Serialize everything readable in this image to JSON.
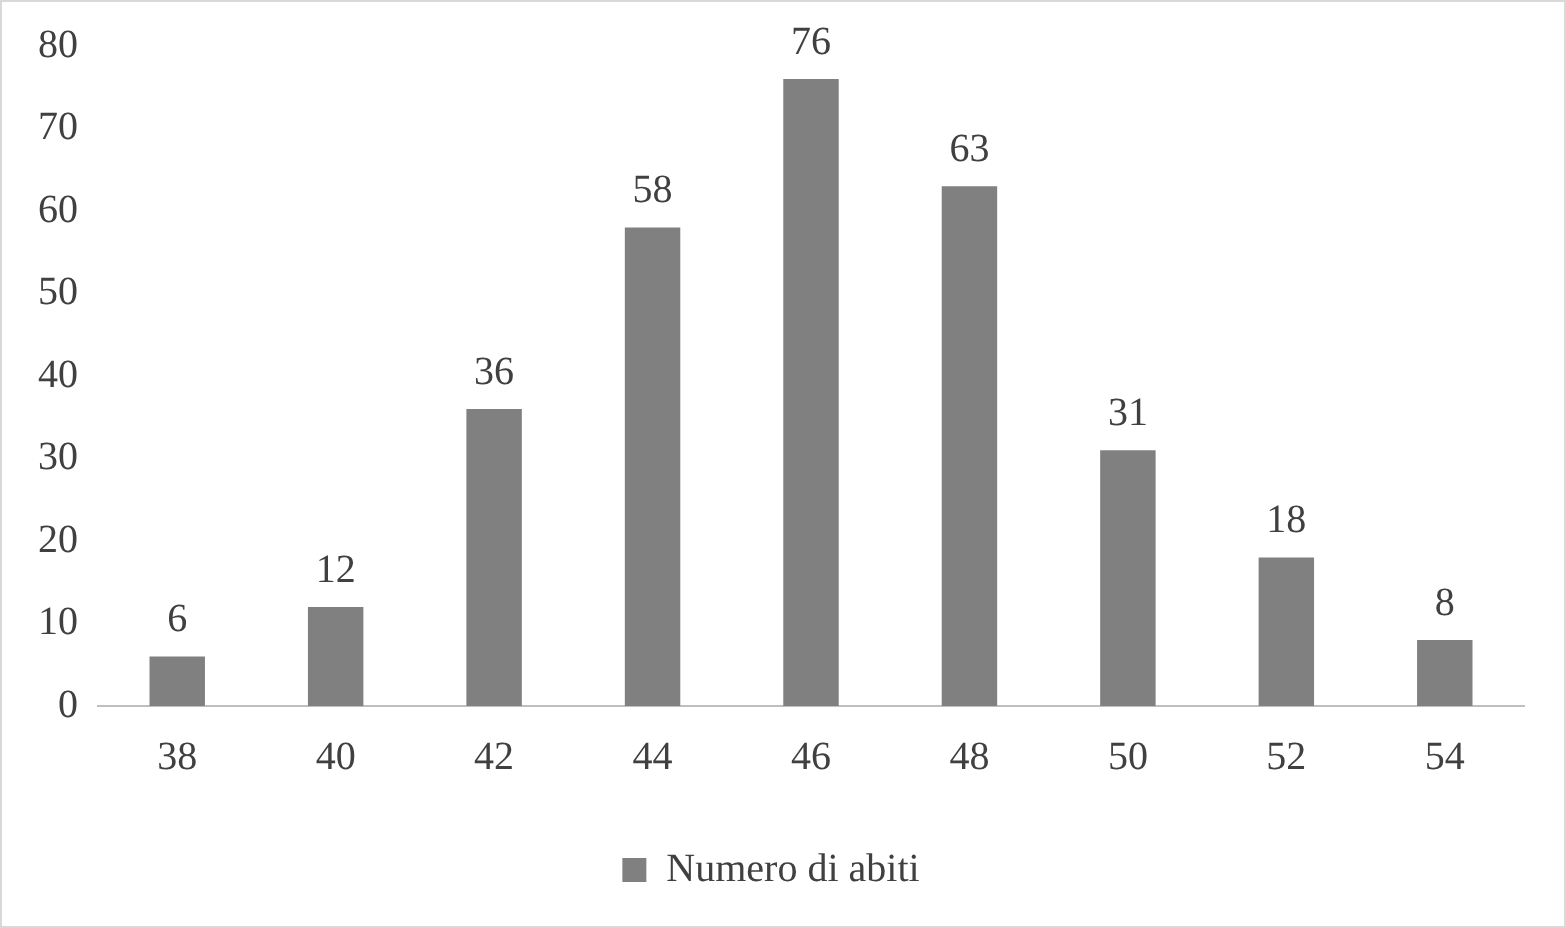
{
  "chart_data": {
    "type": "bar",
    "categories": [
      "38",
      "40",
      "42",
      "44",
      "46",
      "48",
      "50",
      "52",
      "54"
    ],
    "series": [
      {
        "name": "Numero di abiti",
        "color": "#808080",
        "values": [
          6,
          12,
          36,
          58,
          76,
          63,
          31,
          18,
          8
        ]
      }
    ],
    "ylim": [
      0,
      80
    ],
    "yticks": [
      0,
      10,
      20,
      30,
      40,
      50,
      60,
      70,
      80
    ],
    "grid": false,
    "legend": "bottom",
    "data_labels": true
  }
}
